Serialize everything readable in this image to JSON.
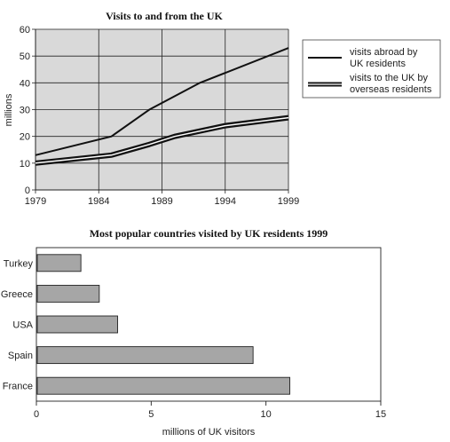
{
  "chart_data": [
    {
      "type": "line",
      "title": "Visits to and from the UK",
      "ylabel": "millions",
      "xlabel": "",
      "xlim": [
        1979,
        1999
      ],
      "ylim": [
        0,
        60
      ],
      "x_ticks": [
        "1979",
        "1984",
        "1989",
        "1994",
        "1999"
      ],
      "y_ticks": [
        "0",
        "10",
        "20",
        "30",
        "40",
        "50",
        "60"
      ],
      "grid": true,
      "legend_position": "right",
      "series": [
        {
          "name": "visits abroad by UK residents",
          "x": [
            1979,
            1985,
            1988,
            1992,
            1999
          ],
          "y": [
            13,
            20,
            30,
            40,
            53
          ]
        },
        {
          "name": "visits to the UK by overseas residents",
          "x": [
            1979,
            1985,
            1988,
            1990,
            1994,
            1999
          ],
          "y": [
            10,
            13,
            17,
            20,
            24,
            27
          ]
        }
      ],
      "legend_labels": [
        [
          "visits abroad by",
          "UK residents"
        ],
        [
          "visits to the UK by",
          "overseas residents"
        ]
      ]
    },
    {
      "type": "bar",
      "orientation": "horizontal",
      "title": "Most popular countries visited by UK residents 1999",
      "xlabel": "millions of UK visitors",
      "ylabel": "",
      "xlim": [
        0,
        15
      ],
      "x_ticks": [
        "0",
        "5",
        "10",
        "15"
      ],
      "categories": [
        "Turkey",
        "Greece",
        "USA",
        "Spain",
        "France"
      ],
      "values": [
        1.9,
        2.7,
        3.5,
        9.4,
        11
      ]
    }
  ],
  "colors": {
    "plot_background": "#d9d9d9",
    "bar_fill": "#a6a6a6",
    "line": "#111111",
    "double_line_inner": "#ffffff"
  }
}
